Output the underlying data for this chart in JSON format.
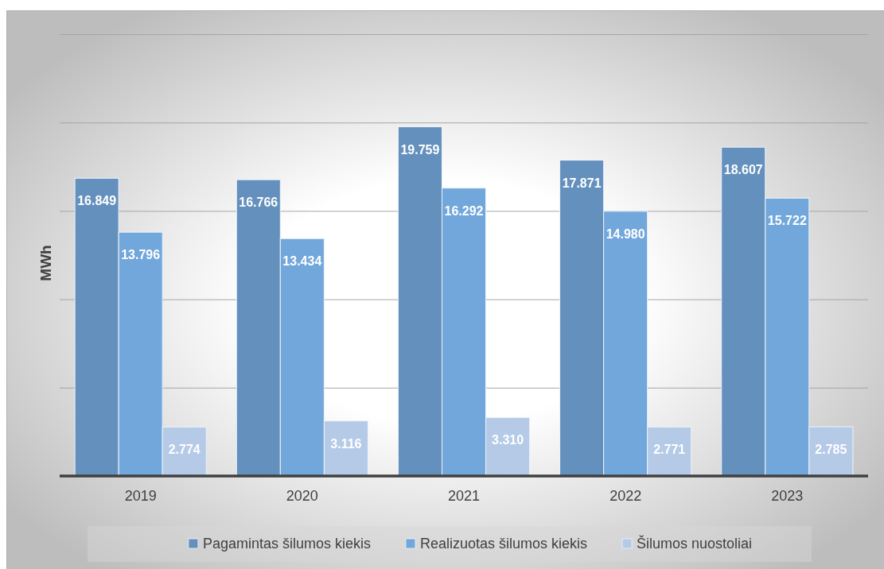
{
  "chart_data": {
    "type": "bar",
    "ylabel": "MWh",
    "categories": [
      "2019",
      "2020",
      "2021",
      "2022",
      "2023"
    ],
    "series": [
      {
        "name": "Pagamintas šilumos kiekis",
        "color": "#6490bd",
        "values": [
          16.849,
          16.766,
          19.759,
          17.871,
          18.607
        ],
        "value_labels": [
          "16.849",
          "16.766",
          "19.759",
          "17.871",
          "18.607"
        ]
      },
      {
        "name": "Realizuotas šilumos kiekis",
        "color": "#72a7db",
        "values": [
          13.796,
          13.434,
          16.292,
          14.98,
          15.722
        ],
        "value_labels": [
          "13.796",
          "13.434",
          "16.292",
          "14.980",
          "15.722"
        ]
      },
      {
        "name": "Šilumos nuostoliai",
        "color": "#b5cae7",
        "values": [
          2.774,
          3.116,
          3.31,
          2.771,
          2.785
        ],
        "value_labels": [
          "2.774",
          "3.116",
          "3.310",
          "2.771",
          "2.785"
        ]
      }
    ],
    "ylim": [
      0,
      25
    ],
    "yticks": [
      {
        "value": 0,
        "label": null
      },
      {
        "value": 5,
        "label": null
      },
      {
        "value": 10,
        "label": null
      },
      {
        "value": 15,
        "label": null
      },
      {
        "value": 20,
        "label": null
      },
      {
        "value": 25,
        "label": null
      }
    ],
    "grid": "y",
    "legend": "bottom",
    "tick_labels": "x"
  }
}
